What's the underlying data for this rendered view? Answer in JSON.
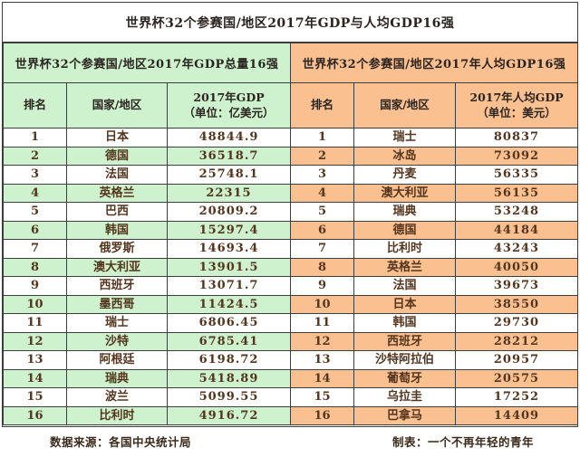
{
  "title": "世界杯32个参赛国/地区2017年GDP与人均GDP16强",
  "footer": {
    "source": "数据来源：各国中央统计局",
    "credit": "制表：一个不再年轻的青年"
  },
  "colors": {
    "left_accent": "#cdf2cd",
    "right_accent": "#fac090",
    "border": "#3e3e3e",
    "data_text": "#54351e",
    "heading_text": "#2b2420"
  },
  "chart_data": [
    {
      "type": "table",
      "title": "世界杯32个参赛国/地区2017年GDP总量16强",
      "columns": [
        "排名",
        "国家/地区",
        "2017年GDP\n（单位：亿美元）"
      ],
      "rows": [
        [
          1,
          "日本",
          48844.9
        ],
        [
          2,
          "德国",
          36518.7
        ],
        [
          3,
          "法国",
          25748.1
        ],
        [
          4,
          "英格兰",
          22315
        ],
        [
          5,
          "巴西",
          20809.2
        ],
        [
          6,
          "韩国",
          15297.4
        ],
        [
          7,
          "俄罗斯",
          14693.4
        ],
        [
          8,
          "澳大利亚",
          13901.5
        ],
        [
          9,
          "西班牙",
          13071.7
        ],
        [
          10,
          "墨西哥",
          11424.5
        ],
        [
          11,
          "瑞士",
          6806.45
        ],
        [
          12,
          "沙特",
          6785.41
        ],
        [
          13,
          "阿根廷",
          6198.72
        ],
        [
          14,
          "瑞典",
          5418.89
        ],
        [
          15,
          "波兰",
          5099.55
        ],
        [
          16,
          "比利时",
          4916.72
        ]
      ]
    },
    {
      "type": "table",
      "title": "世界杯32个参赛国/地区2017年人均GDP16强",
      "columns": [
        "排名",
        "国家/地区",
        "2017年人均GDP\n（单位：美元）"
      ],
      "rows": [
        [
          1,
          "瑞士",
          80837
        ],
        [
          2,
          "冰岛",
          73092
        ],
        [
          3,
          "丹麦",
          56335
        ],
        [
          4,
          "澳大利亚",
          56135
        ],
        [
          5,
          "瑞典",
          53248
        ],
        [
          6,
          "德国",
          44184
        ],
        [
          7,
          "比利时",
          43243
        ],
        [
          8,
          "英格兰",
          40050
        ],
        [
          9,
          "法国",
          39673
        ],
        [
          10,
          "日本",
          38550
        ],
        [
          11,
          "韩国",
          29730
        ],
        [
          12,
          "西班牙",
          28212
        ],
        [
          13,
          "沙特阿拉伯",
          20957
        ],
        [
          14,
          "葡萄牙",
          20575
        ],
        [
          15,
          "乌拉圭",
          17252
        ],
        [
          16,
          "巴拿马",
          14409
        ]
      ]
    }
  ]
}
